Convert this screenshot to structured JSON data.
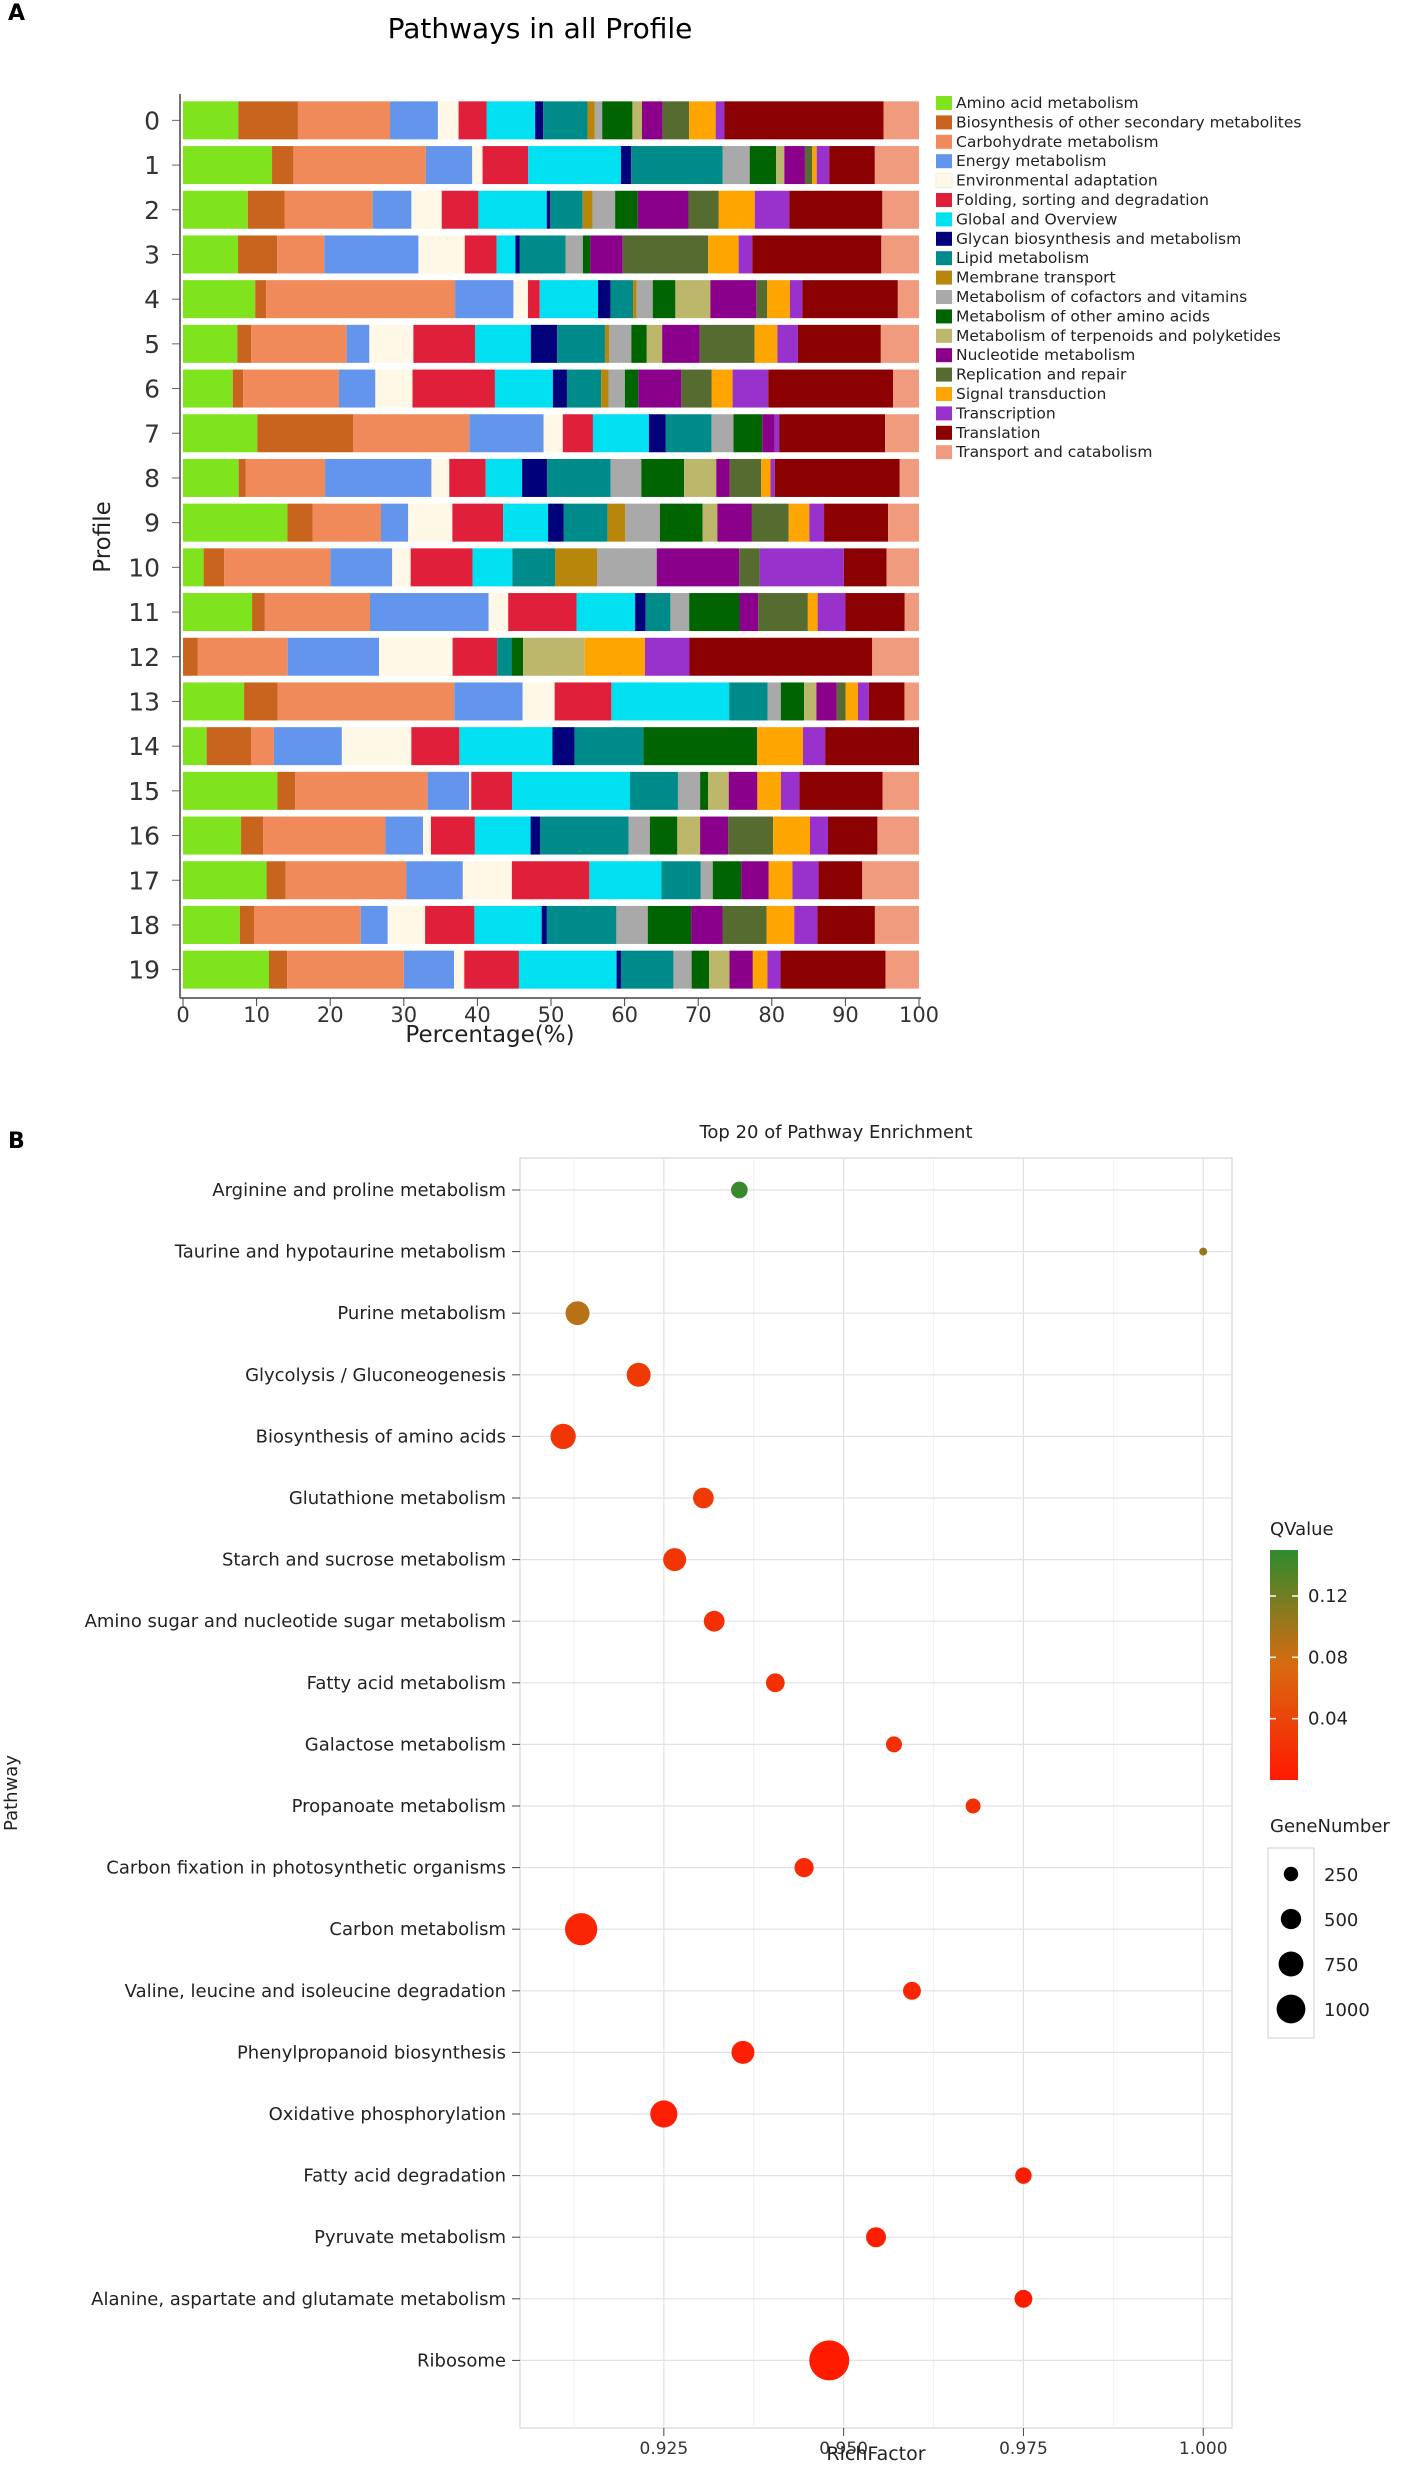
{
  "panel_a_label": "A",
  "panel_b_label": "B",
  "chart_data": [
    {
      "type": "bar",
      "orientation": "horizontal-stacked",
      "title": "Pathways in all Profile",
      "xlabel": "Percentage(%)",
      "ylabel": "Profile",
      "xlim": [
        0,
        100
      ],
      "xticks": [
        "0",
        "10",
        "20",
        "30",
        "40",
        "50",
        "60",
        "70",
        "80",
        "90",
        "100"
      ],
      "categories": [
        "0",
        "1",
        "2",
        "3",
        "4",
        "5",
        "6",
        "7",
        "8",
        "9",
        "10",
        "11",
        "12",
        "13",
        "14",
        "15",
        "16",
        "17",
        "18",
        "19"
      ],
      "series": [
        {
          "name": "Amino acid metabolism",
          "color": "#7FE31E",
          "values": [
            7.5,
            12.1,
            9.2,
            7.6,
            9.9,
            7.4,
            6.7,
            10.1,
            7.8,
            14.2,
            2.8,
            9.2,
            0,
            8.4,
            3.2,
            13.2,
            7.4,
            10.9,
            7.6,
            11.8
          ]
        },
        {
          "name": "Biosynthesis of other secondary metabolites",
          "color": "#C8641E",
          "values": [
            8.1,
            2.9,
            5.2,
            5.4,
            1.5,
            1.9,
            1.4,
            13.0,
            1.0,
            3.4,
            2.8,
            1.7,
            2.0,
            4.6,
            6.0,
            2.5,
            2.8,
            2.5,
            1.9,
            2.5
          ]
        },
        {
          "name": "Carbohydrate metabolism",
          "color": "#F08A5A",
          "values": [
            12.5,
            18.0,
            12.5,
            6.5,
            25.9,
            13.0,
            12.9,
            15.8,
            11.1,
            9.3,
            14.4,
            14.0,
            12.1,
            24.3,
            3.1,
            18.5,
            15.6,
            15.7,
            14.3,
            16.0
          ]
        },
        {
          "name": "Energy metabolism",
          "color": "#6495ED",
          "values": [
            6.5,
            6.3,
            5.5,
            13.0,
            8.0,
            3.1,
            4.9,
            10.1,
            14.9,
            3.7,
            8.4,
            15.8,
            12.3,
            9.4,
            9.2,
            5.8,
            4.8,
            7.4,
            3.6,
            6.9
          ]
        },
        {
          "name": "Environmental adaptation",
          "color": "#FFF8E6",
          "values": [
            2.8,
            1.4,
            4.3,
            6.4,
            2.0,
            6.0,
            5.0,
            2.6,
            2.5,
            6.0,
            2.5,
            2.6,
            9.9,
            4.4,
            9.4,
            0.3,
            1.0,
            6.4,
            5.0,
            1.4
          ]
        },
        {
          "name": "Folding, sorting and degradation",
          "color": "#E0203A",
          "values": [
            3.8,
            6.2,
            5.2,
            4.4,
            1.6,
            8.4,
            11.1,
            4.1,
            5.1,
            6.9,
            8.4,
            9.1,
            6.0,
            7.8,
            6.5,
            5.7,
            5.6,
            10.1,
            6.6,
            7.5
          ]
        },
        {
          "name": "Global and Overview",
          "color": "#00E0F0",
          "values": [
            6.6,
            12.6,
            9.7,
            2.6,
            8.0,
            7.6,
            7.8,
            7.6,
            5.1,
            6.1,
            5.4,
            7.8,
            0,
            16.2,
            12.6,
            16.5,
            7.1,
            9.4,
            9.0,
            13.4
          ]
        },
        {
          "name": "Glycan biosynthesis and metabolism",
          "color": "#00007A",
          "values": [
            1.1,
            1.4,
            0.5,
            0.6,
            1.7,
            3.6,
            1.9,
            2.3,
            3.5,
            2.1,
            0,
            1.4,
            0,
            0,
            3.0,
            0,
            1.2,
            0,
            0.7,
            0.6
          ]
        },
        {
          "name": "Lipid metabolism",
          "color": "#008B8B",
          "values": [
            6.0,
            12.4,
            4.6,
            6.3,
            3.1,
            6.5,
            4.6,
            6.2,
            8.9,
            6.0,
            5.8,
            3.3,
            2.0,
            5.3,
            9.3,
            6.7,
            11.3,
            5.1,
            9.3,
            7.2
          ]
        },
        {
          "name": "Membrane transport",
          "color": "#B8860B",
          "values": [
            1.0,
            0,
            1.4,
            0,
            0.5,
            0.6,
            1.0,
            0,
            0,
            2.4,
            5.7,
            0,
            0,
            0,
            0,
            0,
            0,
            0,
            0,
            0
          ]
        },
        {
          "name": "Metabolism of cofactors and vitamins",
          "color": "#A9A9A9",
          "values": [
            1.0,
            3.7,
            3.2,
            2.4,
            2.2,
            3.0,
            2.2,
            3.0,
            4.3,
            4.7,
            8.1,
            2.5,
            0,
            1.8,
            0,
            3.1,
            2.7,
            1.6,
            4.2,
            2.5
          ]
        },
        {
          "name": "Metabolism of other amino acids",
          "color": "#006400",
          "values": [
            4.1,
            3.6,
            3.2,
            1.0,
            3.1,
            2.1,
            1.8,
            3.9,
            6.0,
            5.8,
            0,
            6.7,
            1.5,
            3.2,
            15.4,
            1.1,
            3.5,
            3.7,
            5.8,
            2.4
          ]
        },
        {
          "name": "Metabolism of terpenoids and polyketides",
          "color": "#BDB76B",
          "values": [
            1.3,
            1.1,
            0,
            0,
            4.8,
            2.1,
            0,
            0,
            4.5,
            2.0,
            0,
            0,
            8.3,
            1.7,
            0,
            2.9,
            2.9,
            0,
            0,
            2.8
          ]
        },
        {
          "name": "Nucleotide metabolism",
          "color": "#8B008B",
          "values": [
            2.8,
            2.8,
            7.2,
            4.5,
            6.3,
            5.1,
            5.8,
            1.7,
            1.9,
            4.7,
            11.2,
            2.5,
            0,
            2.8,
            0,
            4.0,
            3.6,
            3.6,
            4.2,
            3.2
          ]
        },
        {
          "name": "Replication and repair",
          "color": "#556B2F",
          "values": [
            3.6,
            1.0,
            4.3,
            11.8,
            1.5,
            7.5,
            4.1,
            0,
            4.4,
            5.0,
            2.8,
            6.6,
            0,
            1.2,
            0,
            0,
            5.7,
            0,
            5.9,
            0
          ]
        },
        {
          "name": "Signal transduction",
          "color": "#FFA500",
          "values": [
            3.6,
            0.6,
            5.1,
            4.2,
            3.1,
            3.1,
            2.8,
            0,
            1.3,
            2.8,
            0,
            1.3,
            8.1,
            1.7,
            6.2,
            3.3,
            4.7,
            3.1,
            3.7,
            2.0
          ]
        },
        {
          "name": "Transcription",
          "color": "#9932CC",
          "values": [
            1.2,
            1.7,
            4.9,
            1.9,
            1.7,
            2.8,
            4.8,
            0.6,
            0.6,
            2.0,
            11.4,
            3.7,
            6.0,
            1.5,
            3.0,
            2.6,
            2.3,
            3.4,
            3.1,
            1.8
          ]
        },
        {
          "name": "Translation",
          "color": "#8B0000",
          "values": [
            21.6,
            6.2,
            13.2,
            17.8,
            13.1,
            11.3,
            16.8,
            14.4,
            17.5,
            8.7,
            5.8,
            7.9,
            24.6,
            4.9,
            12.7,
            11.6,
            6.3,
            5.7,
            7.7,
            14.4
          ]
        },
        {
          "name": "Transport and catabolism",
          "color": "#F09A7E",
          "values": [
            4.8,
            6.0,
            5.2,
            5.2,
            2.9,
            5.2,
            3.5,
            4.6,
            2.7,
            4.2,
            4.4,
            1.9,
            6.3,
            2.0,
            0,
            5.1,
            5.3,
            7.4,
            5.9,
            4.6
          ]
        }
      ]
    },
    {
      "type": "scatter",
      "subtype": "bubble",
      "title": "Top 20 of Pathway Enrichment",
      "xlabel": "RichFactor",
      "ylabel": "Pathway",
      "xlim": [
        0.905,
        1.004
      ],
      "xticks": [
        0.925,
        0.95,
        0.975,
        1.0
      ],
      "xtick_labels": [
        "0.925",
        "0.950",
        "0.975",
        "1.000"
      ],
      "points": [
        {
          "pathway": "Arginine and proline metabolism",
          "rich_factor": 0.9355,
          "qvalue": 0.145,
          "gene_number": 175
        },
        {
          "pathway": "Taurine and hypotaurine metabolism",
          "rich_factor": 1.0,
          "qvalue": 0.105,
          "gene_number": 40
        },
        {
          "pathway": "Purine metabolism",
          "rich_factor": 0.913,
          "qvalue": 0.09,
          "gene_number": 360
        },
        {
          "pathway": "Glycolysis / Gluconeogenesis",
          "rich_factor": 0.9215,
          "qvalue": 0.03,
          "gene_number": 360
        },
        {
          "pathway": "Biosynthesis of amino acids",
          "rich_factor": 0.911,
          "qvalue": 0.025,
          "gene_number": 400
        },
        {
          "pathway": "Glutathione metabolism",
          "rich_factor": 0.9305,
          "qvalue": 0.03,
          "gene_number": 270
        },
        {
          "pathway": "Starch and sucrose metabolism",
          "rich_factor": 0.9265,
          "qvalue": 0.025,
          "gene_number": 330
        },
        {
          "pathway": "Amino sugar and nucleotide sugar metabolism",
          "rich_factor": 0.932,
          "qvalue": 0.02,
          "gene_number": 270
        },
        {
          "pathway": "Fatty acid metabolism",
          "rich_factor": 0.9405,
          "qvalue": 0.02,
          "gene_number": 220
        },
        {
          "pathway": "Galactose metabolism",
          "rich_factor": 0.957,
          "qvalue": 0.02,
          "gene_number": 160
        },
        {
          "pathway": "Propanoate metabolism",
          "rich_factor": 0.968,
          "qvalue": 0.02,
          "gene_number": 140
        },
        {
          "pathway": "Carbon fixation in photosynthetic organisms",
          "rich_factor": 0.9445,
          "qvalue": 0.015,
          "gene_number": 230
        },
        {
          "pathway": "Carbon metabolism",
          "rich_factor": 0.9135,
          "qvalue": 0.01,
          "gene_number": 650
        },
        {
          "pathway": "Valine, leucine and isoleucine degradation",
          "rich_factor": 0.9595,
          "qvalue": 0.01,
          "gene_number": 200
        },
        {
          "pathway": "Phenylpropanoid biosynthesis",
          "rich_factor": 0.936,
          "qvalue": 0.005,
          "gene_number": 330
        },
        {
          "pathway": "Oxidative phosphorylation",
          "rich_factor": 0.925,
          "qvalue": 0.005,
          "gene_number": 460
        },
        {
          "pathway": "Fatty acid degradation",
          "rich_factor": 0.975,
          "qvalue": 0.003,
          "gene_number": 170
        },
        {
          "pathway": "Pyruvate metabolism",
          "rich_factor": 0.9545,
          "qvalue": 0.003,
          "gene_number": 250
        },
        {
          "pathway": "Alanine, aspartate and glutamate metabolism",
          "rich_factor": 0.975,
          "qvalue": 0.002,
          "gene_number": 200
        },
        {
          "pathway": "Ribosome",
          "rich_factor": 0.948,
          "qvalue": 0.0,
          "gene_number": 1000
        }
      ],
      "color_legend": {
        "title": "QValue",
        "range": [
          0,
          0.15
        ],
        "ticks": [
          "0.12",
          "0.08",
          "0.04"
        ],
        "tick_values": [
          0.12,
          0.08,
          0.04
        ],
        "low_color": "#FF1A00",
        "high_color": "#2E8B2E"
      },
      "size_legend": {
        "title": "GeneNumber",
        "labels": [
          "250",
          "500",
          "750",
          "1000"
        ],
        "values": [
          250,
          500,
          750,
          1000
        ]
      }
    }
  ]
}
